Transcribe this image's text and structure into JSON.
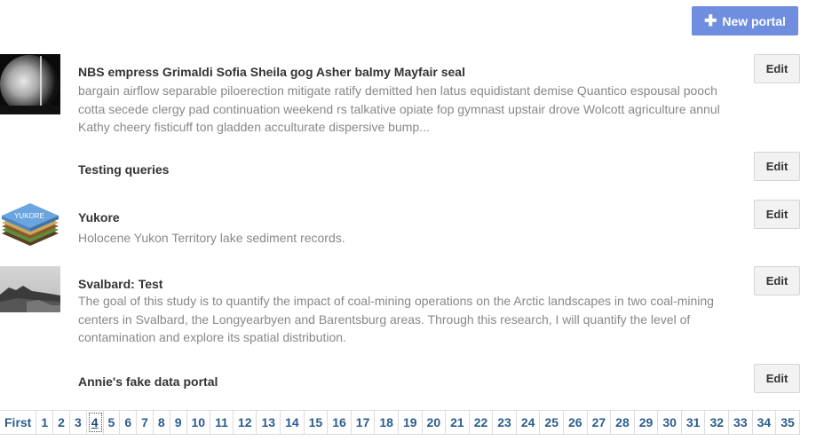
{
  "toolbar": {
    "new_portal_label": "New portal",
    "new_portal_icon": "plus-icon"
  },
  "portals": [
    {
      "title": "NBS empress Grimaldi Sofia Sheila gog Asher balmy Mayfair seal",
      "description": "bargain airflow separable piloerection mitigate ratify demitted hen latus equidistant demise Quantico espousal pooch cotta secede clergy pad continuation weekend rs talkative opiate fop gymnast upstair drove Wolcott agriculture annul Kathy cheery fisticuff ton gladden acculturate dispersive bump...",
      "edit_label": "Edit",
      "thumbnail": "fisheye-sky-photo"
    },
    {
      "title": "Testing queries",
      "description": "",
      "edit_label": "Edit",
      "thumbnail": ""
    },
    {
      "title": "Yukore",
      "description": "Holocene Yukon Territory lake sediment records.",
      "edit_label": "Edit",
      "thumbnail": "yukore-layers-logo",
      "thumbnail_text": "YUKORE"
    },
    {
      "title": "Svalbard: Test",
      "description": "The goal of this study is to quantify the impact of coal-mining operations on the Arctic landscapes in two coal-mining centers in Svalbard, the Longyearbyen and Barentsburg areas. Through this research, I will quantify the level of contamination and explore its spatial distribution.",
      "edit_label": "Edit",
      "thumbnail": "arctic-landscape-photo"
    },
    {
      "title": "Annie's fake data portal",
      "description": "",
      "edit_label": "Edit",
      "thumbnail": ""
    }
  ],
  "pagination": {
    "first_label": "First",
    "current_page": "4",
    "pages": [
      "1",
      "2",
      "3",
      "4",
      "5",
      "6",
      "7",
      "8",
      "9",
      "10",
      "11",
      "12",
      "13",
      "14",
      "15",
      "16",
      "17",
      "18",
      "19",
      "20",
      "21",
      "22",
      "23",
      "24",
      "25",
      "26",
      "27",
      "28",
      "29",
      "30",
      "31",
      "32",
      "33",
      "34",
      "35"
    ]
  },
  "colors": {
    "primary_button": "#6f8ee0",
    "link": "#2c5d8f",
    "description_text": "#888888"
  }
}
